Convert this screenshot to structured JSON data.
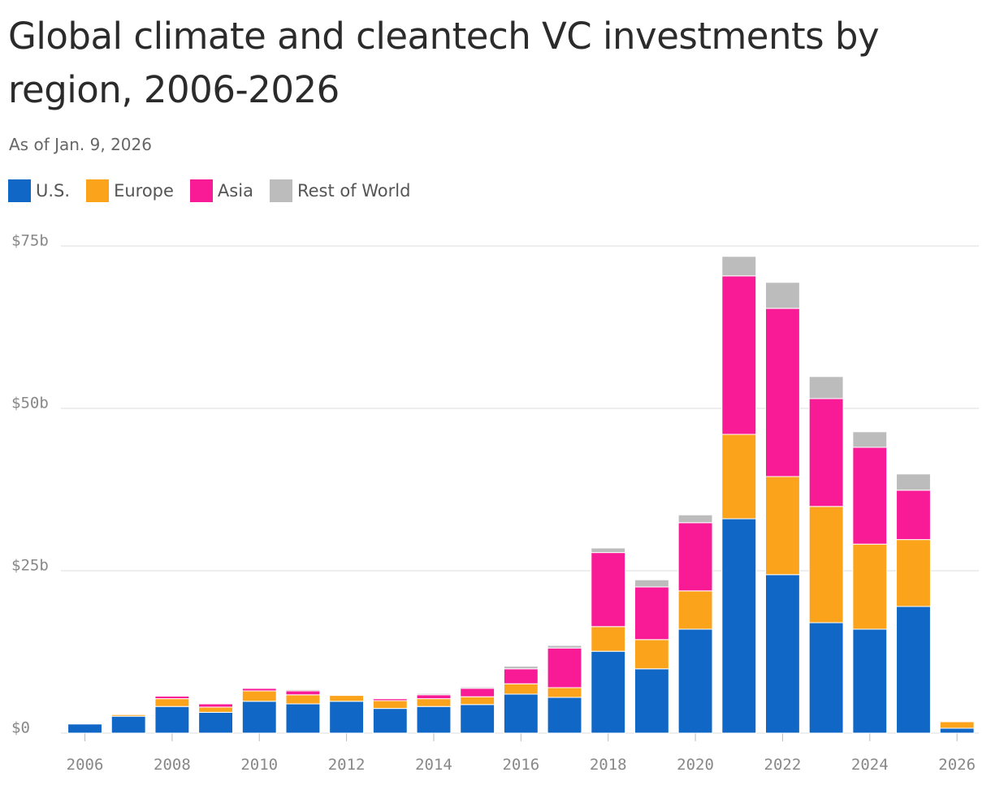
{
  "chart_data": {
    "type": "stacked-bar",
    "title": "Global climate and cleantech VC investments by region, 2006-2026",
    "subtitle": "As of Jan. 9, 2026",
    "x": [
      2006,
      2007,
      2008,
      2009,
      2010,
      2011,
      2012,
      2013,
      2014,
      2015,
      2016,
      2017,
      2018,
      2019,
      2020,
      2021,
      2022,
      2023,
      2024,
      2025,
      2026
    ],
    "xlim": [
      2005.45,
      2026.5
    ],
    "xticks": [
      2006,
      2008,
      2010,
      2012,
      2014,
      2016,
      2018,
      2020,
      2022,
      2024,
      2026
    ],
    "ylim": [
      0,
      75
    ],
    "yticks": [
      {
        "value": 0,
        "label": "$0"
      },
      {
        "value": 25,
        "label": "$25b"
      },
      {
        "value": 50,
        "label": "$50b"
      },
      {
        "value": 75,
        "label": "$75b"
      }
    ],
    "grid": true,
    "legend": "top-left",
    "series": [
      {
        "name": "U.S.",
        "color": "#1167c5",
        "values": [
          1.4,
          2.6,
          4.1,
          3.2,
          4.9,
          4.5,
          4.9,
          3.8,
          4.1,
          4.4,
          6.0,
          5.5,
          12.6,
          9.9,
          16.0,
          33.0,
          24.4,
          17.0,
          16.0,
          19.5,
          0.75
        ]
      },
      {
        "name": "Europe",
        "color": "#fba31b",
        "values": [
          0,
          0.25,
          1.2,
          0.8,
          1.6,
          1.4,
          0.9,
          1.2,
          1.2,
          1.2,
          1.6,
          1.5,
          3.8,
          4.5,
          5.9,
          13.0,
          15.1,
          17.9,
          13.1,
          10.3,
          1.0
        ]
      },
      {
        "name": "Asia",
        "color": "#f81b95",
        "values": [
          0,
          0,
          0.4,
          0.5,
          0.4,
          0.6,
          0,
          0.3,
          0.6,
          1.3,
          2.3,
          6.1,
          11.4,
          8.1,
          10.5,
          24.4,
          25.9,
          16.6,
          14.9,
          7.6,
          0
        ]
      },
      {
        "name": "Rest of World",
        "color": "#bcbcbc",
        "values": [
          0,
          0,
          0.1,
          0.1,
          0.1,
          0.2,
          0,
          0.1,
          0.2,
          0.2,
          0.4,
          0.4,
          0.7,
          1.1,
          1.2,
          3.0,
          4.0,
          3.4,
          2.4,
          2.5,
          0
        ]
      }
    ]
  }
}
